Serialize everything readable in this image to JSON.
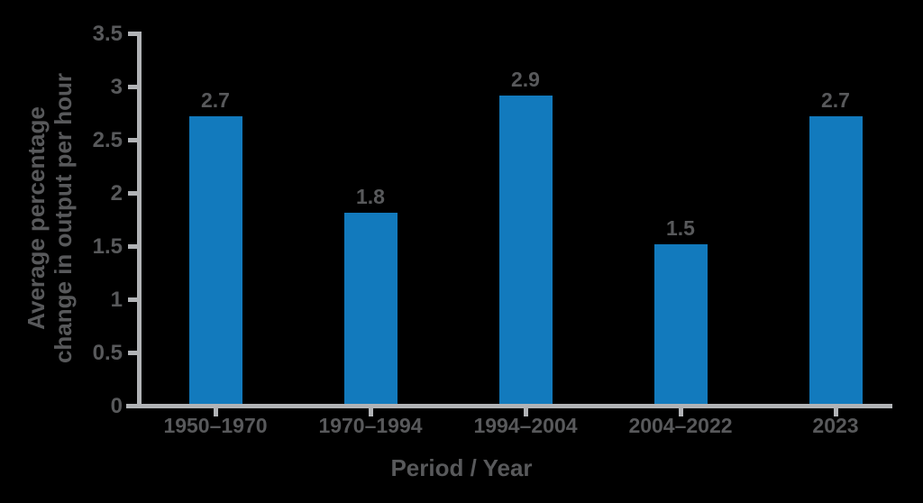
{
  "figure": {
    "background": "#000000"
  },
  "colors": {
    "bar": "#127abd",
    "text": "#58595b",
    "axis": "#b1b3b6",
    "background": "#000000"
  },
  "chart_data": {
    "type": "bar",
    "title": "",
    "categories": [
      "1950–1970",
      "1970–1994",
      "1994–2004",
      "2004–2022",
      "2023"
    ],
    "values": [
      2.7,
      1.8,
      2.9,
      1.5,
      2.7
    ],
    "value_labels": [
      "2.7",
      "1.8",
      "2.9",
      "1.5",
      "2.7"
    ],
    "xlabel": "Period / Year",
    "ylabel": "Average percentage\nchange in output per hour",
    "yticks": [
      0,
      0.5,
      1,
      1.5,
      2,
      2.5,
      3,
      3.5
    ],
    "ylim": [
      0,
      3.5
    ],
    "grid": "off",
    "legend": "none",
    "bar_color": "#127abd"
  }
}
